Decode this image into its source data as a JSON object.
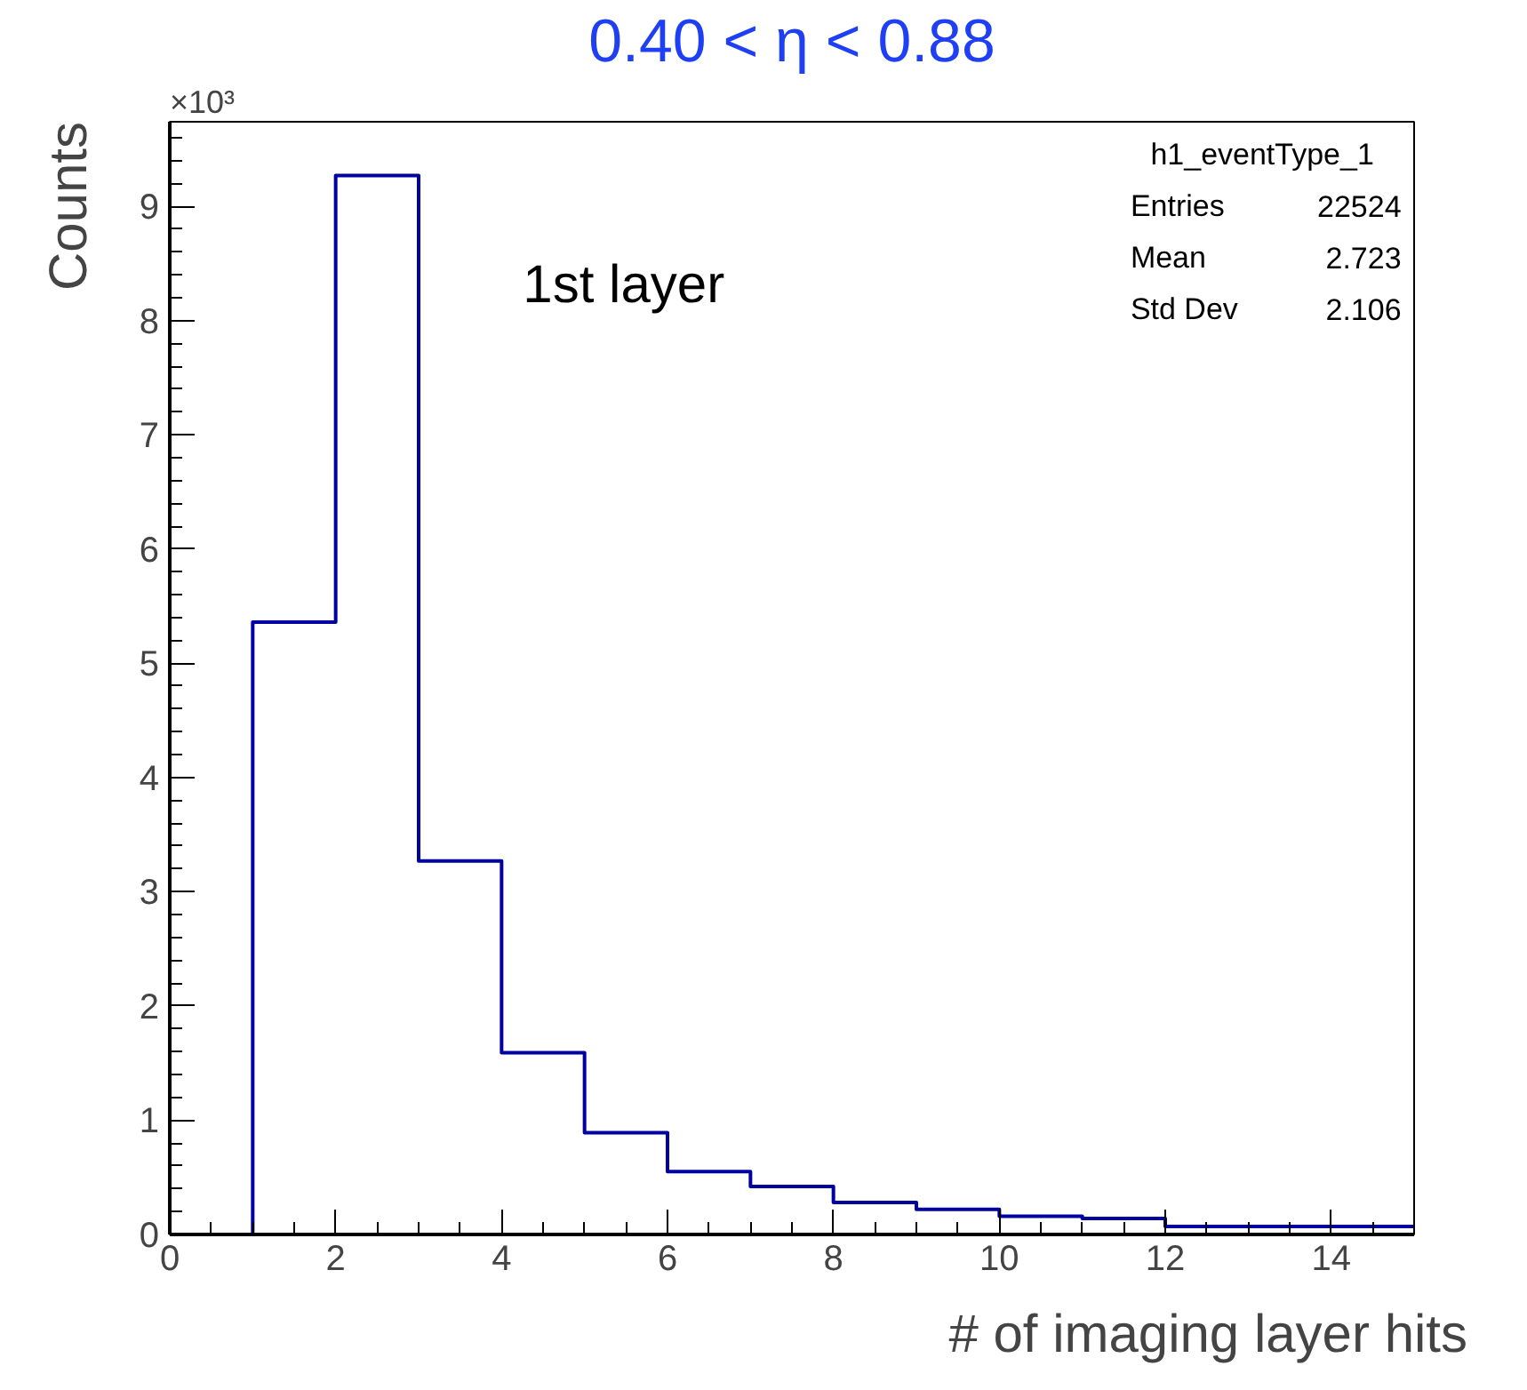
{
  "chart_data": {
    "type": "histogram",
    "title": "0.40 < η < 0.88",
    "xlabel": "# of imaging layer hits",
    "ylabel": "Counts",
    "bins": [
      0,
      1,
      2,
      3,
      4,
      5,
      6,
      7,
      8,
      9,
      10,
      11,
      12,
      13,
      14,
      15
    ],
    "values": [
      0,
      5.36,
      9.27,
      3.27,
      1.59,
      0.89,
      0.55,
      0.42,
      0.28,
      0.22,
      0.16,
      0.14,
      0.07,
      0.07,
      0.07
    ],
    "color": "#0000a0",
    "xlim": [
      0,
      15
    ],
    "ylim": [
      0,
      9.74
    ],
    "xticks": [
      0,
      2,
      4,
      6,
      8,
      10,
      12,
      14
    ],
    "yticks": [
      0,
      1,
      2,
      3,
      4,
      5,
      6,
      7,
      8,
      9
    ],
    "grid": false,
    "annotations": [
      "×10³",
      "1st layer",
      "h1_eventType_1",
      "Entries 22524",
      "Mean 2.723",
      "Std Dev 2.106"
    ]
  }
}
